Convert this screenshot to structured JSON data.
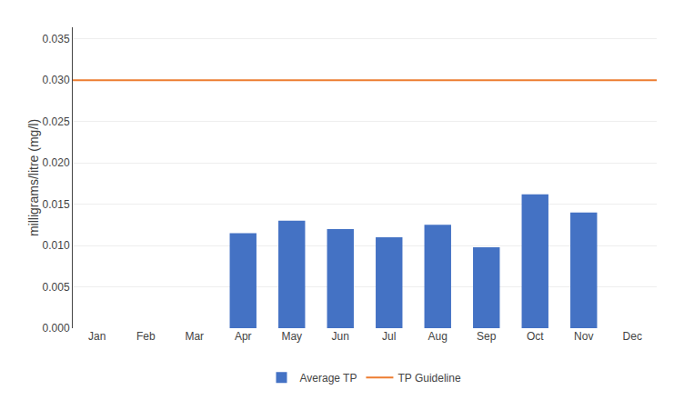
{
  "chart_data": {
    "type": "bar",
    "categories": [
      "Jan",
      "Feb",
      "Mar",
      "Apr",
      "May",
      "Jun",
      "Jul",
      "Aug",
      "Sep",
      "Oct",
      "Nov",
      "Dec"
    ],
    "series": [
      {
        "name": "Average TP",
        "type": "bar",
        "color": "#4472C4",
        "values": [
          0,
          0,
          0,
          0.0115,
          0.013,
          0.012,
          0.011,
          0.0125,
          0.0098,
          0.0162,
          0.014,
          0
        ]
      },
      {
        "name": "TP Guideline",
        "type": "hline",
        "color": "#ED7D31",
        "value": 0.03
      }
    ],
    "ylabel": "milligrams/litre (mg/l)",
    "ylim": [
      0,
      0.0364
    ],
    "yticks": [
      {
        "value": 0.0,
        "label": "0.000"
      },
      {
        "value": 0.005,
        "label": "0.005"
      },
      {
        "value": 0.01,
        "label": "0.010"
      },
      {
        "value": 0.015,
        "label": "0.015"
      },
      {
        "value": 0.02,
        "label": "0.020"
      },
      {
        "value": 0.025,
        "label": "0.025"
      },
      {
        "value": 0.03,
        "label": "0.030"
      },
      {
        "value": 0.035,
        "label": "0.035"
      }
    ],
    "grid": true,
    "legend": "bottom"
  }
}
